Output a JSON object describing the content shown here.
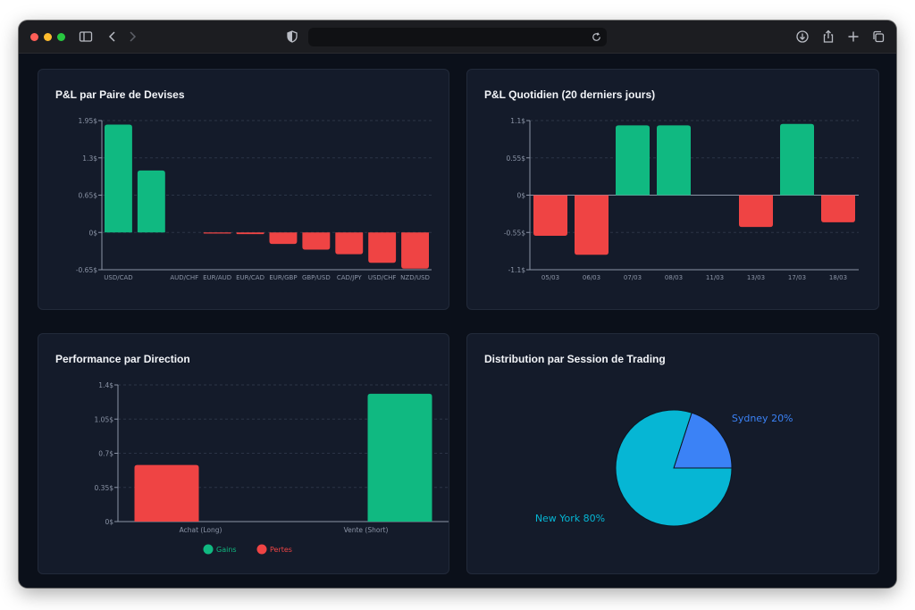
{
  "browser": {
    "traffic_lights": [
      "#ff5f57",
      "#febc2e",
      "#28c840"
    ],
    "icons": [
      "sidebar-icon",
      "back-icon",
      "forward-icon",
      "shield-icon",
      "reload-icon",
      "download-icon",
      "share-icon",
      "new-tab-icon",
      "tabs-overview-icon"
    ]
  },
  "colors": {
    "gain": "#10b981",
    "loss": "#ef4444",
    "card_bg": "#141b2a",
    "axis": "#8b94a6",
    "grid": "#2b3446",
    "new_york": "#06b6d4",
    "sydney": "#3b82f6"
  },
  "cards": {
    "pairs_title": "P&L par Paire de Devises",
    "daily_title": "P&L Quotidien (20 derniers jours)",
    "direction_title": "Performance par Direction",
    "session_title": "Distribution par Session de Trading"
  },
  "chart_data": [
    {
      "id": "pairs",
      "type": "bar",
      "categories": [
        "USD/CAD",
        "",
        "AUD/CHF",
        "EUR/AUD",
        "EUR/CAD",
        "EUR/GBP",
        "GBP/USD",
        "CAD/JPY",
        "USD/CHF",
        "NZD/USD"
      ],
      "values": [
        1.88,
        1.08,
        0,
        -0.02,
        -0.03,
        -0.2,
        -0.3,
        -0.38,
        -0.53,
        -0.63
      ],
      "yticks": [
        "1.95$",
        "1.3$",
        "0.65$",
        "0$",
        "-0.65$"
      ],
      "ylim": [
        -0.65,
        1.95
      ],
      "grid": true
    },
    {
      "id": "daily",
      "type": "bar",
      "categories": [
        "05/03",
        "06/03",
        "07/03",
        "08/03",
        "11/03",
        "13/03",
        "17/03",
        "18/03"
      ],
      "values": [
        -0.6,
        -0.88,
        1.03,
        1.03,
        0,
        -0.47,
        1.05,
        -0.4
      ],
      "yticks": [
        "1.1$",
        "0.55$",
        "0$",
        "-0.55$",
        "-1.1$"
      ],
      "ylim": [
        -1.1,
        1.1
      ],
      "grid": true
    },
    {
      "id": "direction",
      "type": "bar",
      "categories": [
        "Achat (Long)",
        "Vente (Short)"
      ],
      "series": [
        {
          "name": "Gains",
          "values": [
            0,
            1.31
          ]
        },
        {
          "name": "Pertes",
          "values": [
            0.58,
            0
          ]
        }
      ],
      "yticks": [
        "1.4$",
        "1.05$",
        "0.7$",
        "0.35$",
        "0$"
      ],
      "ylim": [
        0,
        1.4
      ],
      "grid": true,
      "legend": "bottom"
    },
    {
      "id": "session",
      "type": "pie",
      "slices": [
        {
          "label": "Sydney 20%",
          "value": 20
        },
        {
          "label": "New York 80%",
          "value": 80
        }
      ]
    }
  ]
}
